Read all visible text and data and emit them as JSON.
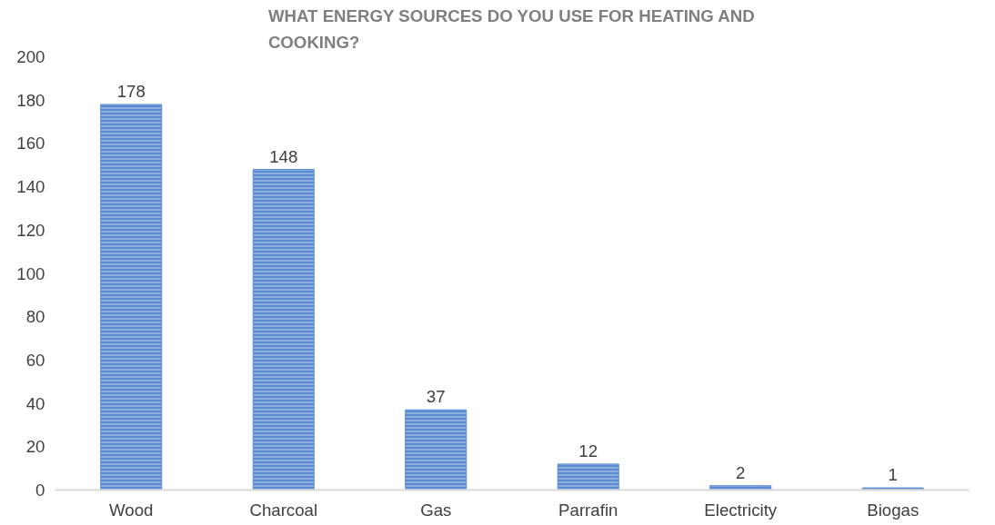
{
  "chart_data": {
    "type": "bar",
    "title": "WHAT ENERGY SOURCES DO YOU USE FOR HEATING AND COOKING?",
    "categories": [
      "Wood",
      "Charcoal",
      "Gas",
      "Parrafin",
      "Electricity",
      "Biogas"
    ],
    "values": [
      178,
      148,
      37,
      12,
      2,
      1
    ],
    "color": "#5b8bd0",
    "ylim": [
      0,
      200
    ],
    "yticks": [
      0,
      20,
      40,
      60,
      80,
      100,
      120,
      140,
      160,
      180,
      200
    ],
    "grid": false,
    "data_labels": true
  }
}
